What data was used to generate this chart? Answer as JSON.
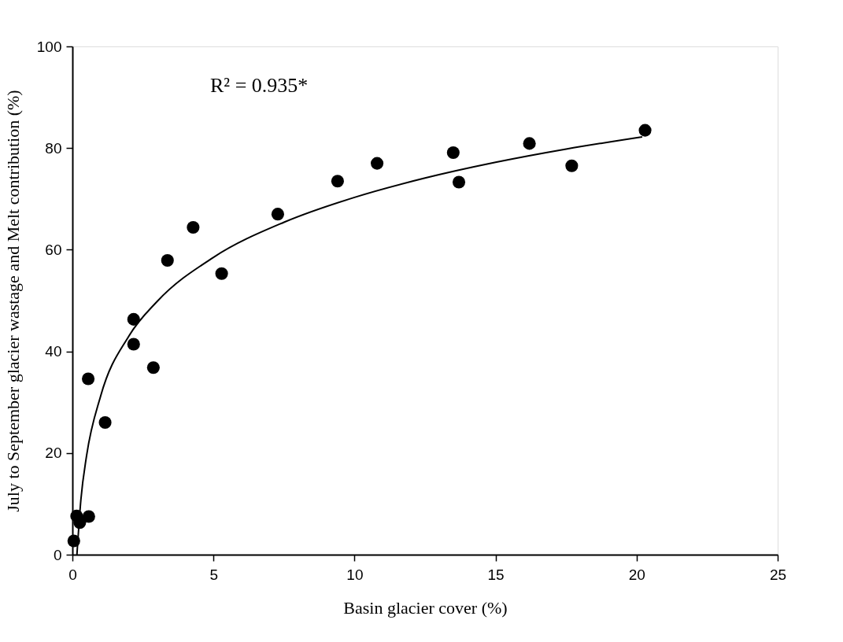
{
  "chart_data": {
    "type": "scatter",
    "xlabel": "Basin glacier cover (%)",
    "ylabel": "July to September glacier wastage and Melt contribution (%)",
    "annotations": [
      "R² = 0.935*"
    ],
    "xlim": [
      0,
      25
    ],
    "xticks": [
      0,
      5,
      10,
      15,
      20,
      25
    ],
    "ylim": [
      0,
      100
    ],
    "yticks": [
      0,
      20,
      40,
      60,
      80,
      100
    ],
    "grid": false,
    "series": [
      {
        "marker": "circle",
        "color": "#000000",
        "x": [
          0.05,
          0.15,
          0.26,
          0.58,
          1.16,
          0.56,
          2.17,
          2.17,
          2.87,
          3.37,
          4.28,
          5.29,
          7.28,
          9.4,
          10.8,
          13.5,
          13.7,
          16.2,
          17.7,
          20.3
        ],
        "values": [
          2.7,
          7.6,
          6.3,
          7.5,
          26.0,
          34.6,
          46.3,
          41.4,
          36.8,
          57.9,
          64.4,
          55.3,
          67.0,
          73.5,
          77.0,
          79.1,
          73.3,
          80.9,
          76.5,
          83.5
        ]
      },
      {
        "type": "line",
        "marker": "none",
        "line_style": "solid",
        "color": "#000000",
        "x": [
          0.16,
          0.3,
          0.5,
          1,
          2,
          3,
          5,
          7.5,
          10,
          12.5,
          15,
          17.5,
          20.2
        ],
        "values": [
          0,
          10.8,
          19.4,
          31.2,
          43,
          49.8,
          58.5,
          65.4,
          70.3,
          74.1,
          77.2,
          79.8,
          82.2
        ]
      }
    ]
  }
}
